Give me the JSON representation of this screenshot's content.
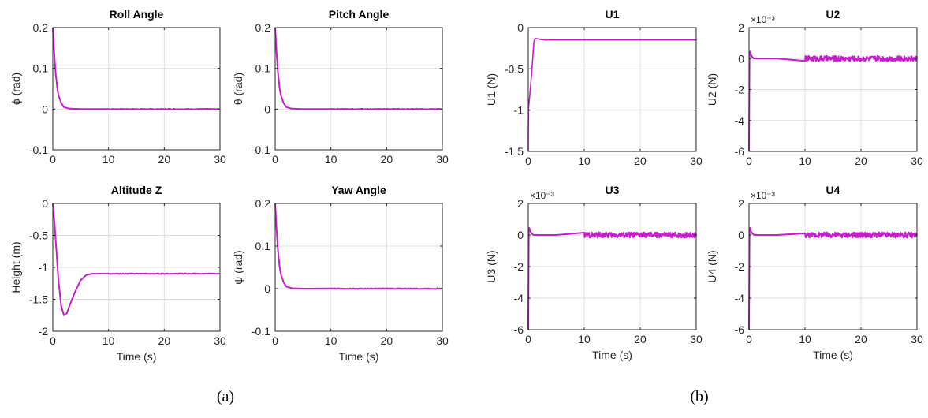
{
  "captions": [
    "(a)",
    "(b)"
  ],
  "colors": {
    "line": "#c51fcb",
    "axis": "#262626",
    "grid": "#dfdfdf"
  },
  "chart_data": [
    {
      "type": "line",
      "title": "Roll Angle",
      "xlabel": "",
      "ylabel": "ϕ (rad)",
      "xlim": [
        0,
        30
      ],
      "ylim": [
        -0.1,
        0.2
      ],
      "xticks": [
        "0",
        "10",
        "20",
        "30"
      ],
      "yticks": [
        "0.2",
        "0.1",
        "0",
        "-0.1"
      ],
      "grid": true,
      "series": [
        {
          "x": [
            0,
            0.2,
            0.5,
            0.8,
            1.0,
            1.5,
            2.0,
            3.0,
            5.0,
            10,
            20,
            30
          ],
          "y": [
            0.2,
            0.15,
            0.09,
            0.05,
            0.035,
            0.015,
            0.005,
            0.001,
            0,
            0,
            0,
            0
          ]
        }
      ]
    },
    {
      "type": "line",
      "title": "Pitch Angle",
      "xlabel": "",
      "ylabel": "θ (rad)",
      "xlim": [
        0,
        30
      ],
      "ylim": [
        -0.1,
        0.2
      ],
      "xticks": [
        "0",
        "10",
        "20",
        "30"
      ],
      "yticks": [
        "0.2",
        "0.1",
        "0",
        "-0.1"
      ],
      "grid": true,
      "series": [
        {
          "x": [
            0,
            0.2,
            0.5,
            0.8,
            1.0,
            1.5,
            2.0,
            3.0,
            5.0,
            10,
            20,
            30
          ],
          "y": [
            0.2,
            0.15,
            0.09,
            0.05,
            0.035,
            0.015,
            0.005,
            0.001,
            0,
            0,
            0,
            0
          ]
        }
      ]
    },
    {
      "type": "line",
      "title": "Altitude Z",
      "xlabel": "Time (s)",
      "ylabel": "Height (m)",
      "xlim": [
        0,
        30
      ],
      "ylim": [
        -2,
        0
      ],
      "xticks": [
        "0",
        "10",
        "20",
        "30"
      ],
      "yticks": [
        "0",
        "-0.5",
        "-1",
        "-1.5",
        "-2"
      ],
      "grid": true,
      "series": [
        {
          "x": [
            0,
            0.3,
            0.7,
            1.0,
            1.5,
            2.0,
            2.5,
            3.0,
            4.0,
            5.0,
            6.0,
            7.0,
            8.0,
            10,
            15,
            20,
            25,
            30
          ],
          "y": [
            0,
            -0.3,
            -0.8,
            -1.2,
            -1.6,
            -1.75,
            -1.72,
            -1.6,
            -1.38,
            -1.2,
            -1.12,
            -1.1,
            -1.1,
            -1.1,
            -1.1,
            -1.1,
            -1.1,
            -1.1
          ]
        }
      ]
    },
    {
      "type": "line",
      "title": "Yaw Angle",
      "xlabel": "Time (s)",
      "ylabel": "ψ (rad)",
      "xlim": [
        0,
        30
      ],
      "ylim": [
        -0.1,
        0.2
      ],
      "xticks": [
        "0",
        "10",
        "20",
        "30"
      ],
      "yticks": [
        "0.2",
        "0.1",
        "0",
        "-0.1"
      ],
      "grid": true,
      "series": [
        {
          "x": [
            0,
            0.2,
            0.5,
            0.8,
            1.0,
            1.5,
            2.0,
            3.0,
            5.0,
            10,
            20,
            30
          ],
          "y": [
            0.2,
            0.15,
            0.09,
            0.05,
            0.035,
            0.015,
            0.005,
            0.001,
            0,
            0,
            0,
            0
          ]
        }
      ]
    },
    {
      "type": "line",
      "title": "U1",
      "xlabel": "",
      "ylabel": "U1 (N)",
      "xlim": [
        0,
        30
      ],
      "ylim": [
        -1.5,
        0
      ],
      "xticks": [
        "0",
        "10",
        "20",
        "30"
      ],
      "yticks": [
        "0",
        "-0.5",
        "-1",
        "-1.5"
      ],
      "grid": true,
      "series": [
        {
          "x": [
            0,
            0.02,
            0.05,
            0.3,
            0.6,
            1.0,
            1.2,
            2.0,
            3.0,
            5,
            10,
            20,
            30
          ],
          "y": [
            -1.5,
            -1.2,
            -0.97,
            -0.8,
            -0.55,
            -0.18,
            -0.13,
            -0.14,
            -0.15,
            -0.15,
            -0.15,
            -0.15,
            -0.15
          ]
        }
      ]
    },
    {
      "type": "line",
      "title": "U2",
      "xlabel": "",
      "ylabel": "U2 (N)",
      "xlim": [
        0,
        30
      ],
      "ylim": [
        -0.006,
        0.002
      ],
      "exponent_label": "×10⁻³",
      "xticks": [
        "0",
        "10",
        "20",
        "30"
      ],
      "yticks": [
        "2",
        "0",
        "-2",
        "-4",
        "-6"
      ],
      "grid": true,
      "series": [
        {
          "x": [
            0,
            0.05,
            0.1,
            0.2,
            0.4,
            0.7,
            1.0,
            2,
            5,
            10,
            20,
            30
          ],
          "y": [
            -0.006,
            -0.002,
            0.0004,
            0.00045,
            0.0002,
            5e-05,
            0,
            0,
            0,
            0,
            0,
            0
          ]
        }
      ],
      "noise_after_x": 10
    },
    {
      "type": "line",
      "title": "U3",
      "xlabel": "Time (s)",
      "ylabel": "U3 (N)",
      "xlim": [
        0,
        30
      ],
      "ylim": [
        -0.006,
        0.002
      ],
      "exponent_label": "×10⁻³",
      "xticks": [
        "0",
        "10",
        "20",
        "30"
      ],
      "yticks": [
        "2",
        "0",
        "-2",
        "-4",
        "-6"
      ],
      "grid": true,
      "series": [
        {
          "x": [
            0,
            0.05,
            0.1,
            0.2,
            0.4,
            0.7,
            1.0,
            2,
            5,
            10,
            20,
            30
          ],
          "y": [
            -0.006,
            -0.002,
            0.0004,
            0.00045,
            0.0002,
            5e-05,
            0,
            0,
            0,
            0,
            0,
            0
          ]
        }
      ],
      "noise_after_x": 10
    },
    {
      "type": "line",
      "title": "U4",
      "xlabel": "Time (s)",
      "ylabel": "U4 (N)",
      "xlim": [
        0,
        30
      ],
      "ylim": [
        -0.006,
        0.002
      ],
      "exponent_label": "×10⁻³",
      "xticks": [
        "0",
        "10",
        "20",
        "30"
      ],
      "yticks": [
        "2",
        "0",
        "-2",
        "-4",
        "-6"
      ],
      "grid": true,
      "series": [
        {
          "x": [
            0,
            0.05,
            0.1,
            0.2,
            0.4,
            0.7,
            1.0,
            2,
            5,
            10,
            20,
            30
          ],
          "y": [
            -0.006,
            -0.002,
            0.0004,
            0.00045,
            0.0002,
            5e-05,
            0,
            0,
            0,
            0,
            0,
            0
          ]
        }
      ],
      "noise_after_x": 10
    }
  ]
}
